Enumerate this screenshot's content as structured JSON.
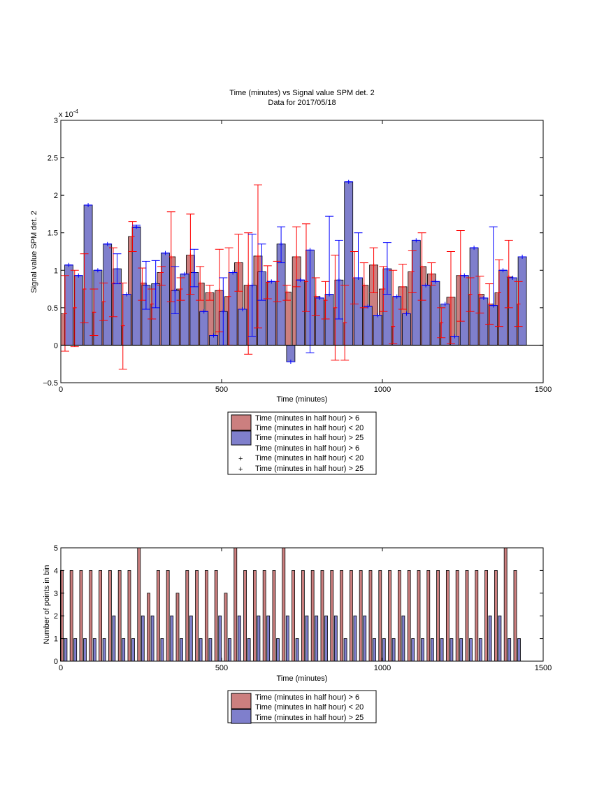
{
  "chart_data": [
    {
      "type": "bar",
      "title": "Time (minutes) vs Signal value SPM det. 2",
      "subtitle": "Data for 2017/05/18",
      "xlabel": "Time (minutes)",
      "ylabel": "Signal value SPM det. 2",
      "y_exponent": "x 10",
      "y_exponent_power": "-4",
      "xlim": [
        0,
        1500
      ],
      "ylim": [
        -0.5,
        3
      ],
      "xticks": [
        "0",
        "500",
        "1000",
        "1500"
      ],
      "yticks": [
        "−0.5",
        "0",
        "0.5",
        "1",
        "1.5",
        "2",
        "2.5",
        "3"
      ],
      "grid": false,
      "legend_position": "below",
      "legend": [
        {
          "kind": "patch",
          "color": "#cc7f7f",
          "lines": [
            "Time (minutes in half hour) > 6",
            "Time (minutes in half hour) < 20"
          ]
        },
        {
          "kind": "patch",
          "color": "#7f7fcc",
          "lines": [
            "Time (minutes in half hour) > 25"
          ]
        },
        {
          "kind": "marker",
          "color": "#ff0000",
          "lines": [
            "Time (minutes in half hour) > 6",
            "Time (minutes in half hour) < 20"
          ]
        },
        {
          "kind": "marker",
          "color": "#0000ff",
          "lines": [
            "Time (minutes in half hour) > 25"
          ]
        }
      ],
      "series": [
        {
          "color": "#cc7f7f",
          "errcolor": "#ff0000",
          "x": [
            13,
            43,
            73,
            103,
            133,
            163,
            193,
            223,
            253,
            283,
            313,
            343,
            373,
            403,
            433,
            463,
            493,
            523,
            553,
            583,
            613,
            643,
            673,
            703,
            733,
            763,
            793,
            823,
            853,
            883,
            913,
            943,
            973,
            1003,
            1033,
            1063,
            1093,
            1123,
            1153,
            1183,
            1213,
            1243,
            1273,
            1303,
            1333,
            1363,
            1393,
            1423
          ],
          "values": [
            0.42,
            0.5,
            0.75,
            0.44,
            0.58,
            0.83,
            0.26,
            1.45,
            0.83,
            0.55,
            0.97,
            1.18,
            0.75,
            1.2,
            0.83,
            0.7,
            0.73,
            0.65,
            1.1,
            0.8,
            1.19,
            0.84,
            0.85,
            0.71,
            1.18,
            0.85,
            0.65,
            0.6,
            0.5,
            0.3,
            0.9,
            0.8,
            1.07,
            0.75,
            0.25,
            0.78,
            0.98,
            1.05,
            0.95,
            0.3,
            0.64,
            0.93,
            0.68,
            0.68,
            0.55,
            0.7,
            0.91,
            0.55
          ],
          "err_low": [
            -0.08,
            -0.02,
            0.3,
            0.13,
            0.33,
            0.38,
            -0.32,
            1.25,
            0.6,
            0.35,
            0.8,
            0.58,
            0.6,
            0.68,
            0.6,
            0.6,
            0.18,
            0.0,
            0.72,
            -0.12,
            0.23,
            0.62,
            0.58,
            0.6,
            0.78,
            0.45,
            0.4,
            0.35,
            -0.2,
            -0.2,
            0.55,
            0.5,
            0.7,
            0.45,
            0.02,
            0.48,
            0.7,
            0.6,
            0.8,
            0.1,
            0.02,
            0.32,
            0.45,
            0.43,
            0.28,
            0.25,
            0.5,
            0.25
          ],
          "err_high": [
            0.93,
            1.0,
            1.22,
            0.75,
            0.83,
            1.3,
            0.83,
            1.65,
            1.03,
            0.75,
            1.05,
            1.78,
            0.9,
            1.75,
            1.05,
            0.8,
            1.28,
            1.3,
            1.48,
            1.5,
            2.14,
            1.06,
            1.12,
            0.8,
            1.58,
            1.62,
            0.9,
            0.85,
            1.2,
            0.8,
            1.25,
            1.1,
            1.3,
            1.05,
            1.0,
            1.08,
            1.26,
            1.5,
            1.1,
            0.5,
            1.25,
            1.53,
            0.9,
            0.92,
            0.82,
            1.14,
            1.4,
            0.85
          ]
        },
        {
          "color": "#7f7fcc",
          "errcolor": "#0000ff",
          "x": [
            25,
            55,
            85,
            115,
            145,
            175,
            205,
            235,
            265,
            295,
            325,
            355,
            385,
            415,
            445,
            475,
            505,
            535,
            565,
            595,
            625,
            655,
            685,
            715,
            745,
            775,
            805,
            835,
            865,
            895,
            925,
            955,
            985,
            1015,
            1045,
            1075,
            1105,
            1135,
            1165,
            1195,
            1225,
            1255,
            1285,
            1315,
            1345,
            1375,
            1405,
            1435
          ],
          "values": [
            1.07,
            0.93,
            1.87,
            1.0,
            1.35,
            1.02,
            0.68,
            1.58,
            0.8,
            0.82,
            1.23,
            0.73,
            0.95,
            0.97,
            0.45,
            0.13,
            0.45,
            0.97,
            0.48,
            0.8,
            0.98,
            0.85,
            1.35,
            -0.22,
            0.87,
            1.27,
            0.63,
            0.68,
            0.87,
            2.18,
            0.9,
            0.52,
            0.4,
            1.02,
            0.65,
            0.42,
            1.4,
            0.8,
            0.85,
            0.55,
            0.12,
            0.93,
            1.3,
            0.63,
            0.53,
            1.0,
            0.9,
            1.18
          ],
          "err_low": [
            1.07,
            0.93,
            1.87,
            1.0,
            1.35,
            0.82,
            0.68,
            1.57,
            0.48,
            0.5,
            1.23,
            0.42,
            0.95,
            0.78,
            0.45,
            0.13,
            0.0,
            0.97,
            0.48,
            0.12,
            0.6,
            0.85,
            1.1,
            -0.22,
            0.87,
            -0.1,
            0.63,
            0.68,
            0.35,
            2.18,
            0.9,
            0.52,
            0.4,
            0.68,
            0.65,
            0.42,
            1.4,
            0.8,
            0.85,
            0.55,
            0.12,
            0.93,
            1.3,
            0.63,
            0.53,
            1.0,
            0.9,
            1.18
          ],
          "err_high": [
            1.07,
            0.93,
            1.87,
            1.0,
            1.35,
            1.22,
            0.68,
            1.6,
            1.12,
            1.13,
            1.23,
            1.05,
            0.95,
            1.28,
            0.45,
            0.13,
            0.9,
            0.97,
            0.48,
            1.48,
            1.35,
            0.85,
            1.58,
            -0.22,
            0.87,
            1.27,
            0.63,
            1.72,
            1.4,
            2.18,
            1.5,
            0.52,
            0.4,
            1.37,
            0.65,
            0.42,
            1.4,
            0.8,
            0.85,
            0.55,
            0.12,
            0.93,
            1.3,
            0.63,
            1.58,
            1.0,
            0.9,
            1.18
          ]
        }
      ]
    },
    {
      "type": "bar",
      "title": "",
      "xlabel": "Time (minutes)",
      "ylabel": "Number of points in bin",
      "xlim": [
        0,
        1500
      ],
      "ylim": [
        0,
        5
      ],
      "xticks": [
        "0",
        "500",
        "1000",
        "1500"
      ],
      "yticks": [
        "0",
        "1",
        "2",
        "3",
        "4",
        "5"
      ],
      "grid": false,
      "legend_position": "below",
      "legend": [
        {
          "kind": "patch",
          "color": "#cc7f7f",
          "lines": [
            "Time (minutes in half hour) > 6",
            "Time (minutes in half hour) < 20"
          ]
        },
        {
          "kind": "patch",
          "color": "#7f7fcc",
          "lines": [
            "Time (minutes in half hour) > 25"
          ]
        }
      ],
      "series": [
        {
          "color": "#cc7f7f",
          "x": [
            3,
            33,
            63,
            93,
            123,
            153,
            183,
            213,
            243,
            273,
            303,
            333,
            363,
            393,
            423,
            453,
            483,
            513,
            543,
            573,
            603,
            633,
            663,
            693,
            723,
            753,
            783,
            813,
            843,
            873,
            903,
            933,
            963,
            993,
            1023,
            1053,
            1083,
            1113,
            1143,
            1173,
            1203,
            1233,
            1263,
            1293,
            1323,
            1353,
            1383,
            1413
          ],
          "values": [
            4,
            4,
            4,
            4,
            4,
            4,
            4,
            4,
            5,
            3,
            4,
            4,
            3,
            4,
            4,
            4,
            4,
            3,
            5,
            4,
            4,
            4,
            4,
            5,
            4,
            4,
            4,
            4,
            4,
            4,
            4,
            4,
            4,
            4,
            4,
            4,
            4,
            4,
            4,
            4,
            4,
            4,
            4,
            4,
            4,
            4,
            5,
            4
          ]
        },
        {
          "color": "#7f7fcc",
          "x": [
            15,
            45,
            75,
            105,
            135,
            165,
            195,
            225,
            255,
            285,
            315,
            345,
            375,
            405,
            435,
            465,
            495,
            525,
            555,
            585,
            615,
            645,
            675,
            705,
            735,
            765,
            795,
            825,
            855,
            885,
            915,
            945,
            975,
            1005,
            1035,
            1065,
            1095,
            1125,
            1155,
            1185,
            1215,
            1245,
            1275,
            1305,
            1335,
            1365,
            1395,
            1425
          ],
          "values": [
            1,
            1,
            1,
            1,
            1,
            2,
            1,
            1,
            2,
            2,
            1,
            2,
            1,
            2,
            1,
            1,
            2,
            1,
            2,
            1,
            2,
            2,
            1,
            2,
            1,
            2,
            2,
            2,
            2,
            1,
            2,
            2,
            1,
            1,
            1,
            2,
            1,
            1,
            1,
            1,
            1,
            1,
            1,
            1,
            2,
            2,
            1,
            1
          ]
        }
      ]
    }
  ]
}
